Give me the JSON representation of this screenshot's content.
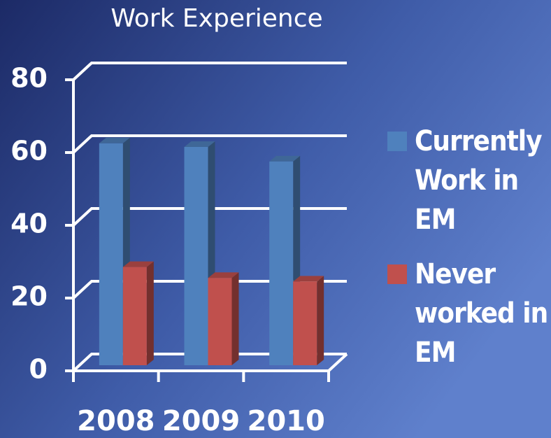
{
  "chart_data": {
    "type": "bar3d",
    "title": "Work Experience",
    "categories": [
      "2008",
      "2009",
      "2010"
    ],
    "series": [
      {
        "name": "Currently Work in EM",
        "color": "#4f81bd",
        "values": [
          61,
          60,
          56
        ]
      },
      {
        "name": "Never worked in EM",
        "color": "#c0504d",
        "values": [
          27,
          24,
          23
        ]
      }
    ],
    "ylim": [
      0,
      80
    ],
    "yticks": [
      0,
      20,
      40,
      60,
      80
    ],
    "grid": true,
    "legend": "right"
  }
}
